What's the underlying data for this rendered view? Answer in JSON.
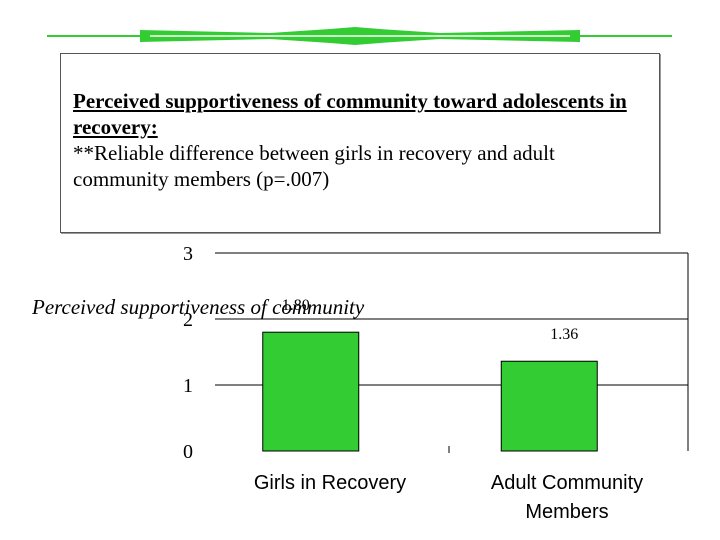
{
  "slide": {
    "heading": "Perceived supportiveness of community toward adolescents in recovery:",
    "note": "**Reliable difference between girls in recovery and adult community members (p=.007)"
  },
  "chart_data": {
    "type": "bar",
    "categories": [
      "Girls in Recovery",
      "Adult Community Members"
    ],
    "values": [
      1.8,
      1.36
    ],
    "value_labels": [
      "1.80",
      "1.36"
    ],
    "title": "",
    "xlabel": "",
    "ylabel": "Perceived supportiveness of community",
    "ylim": [
      0,
      3
    ],
    "yticks": [
      0,
      1,
      2,
      3
    ],
    "grid": true,
    "bar_color": "#33cc33"
  }
}
